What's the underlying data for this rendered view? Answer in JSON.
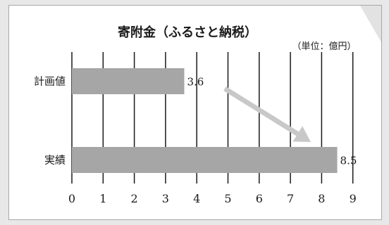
{
  "chart_data": {
    "type": "bar",
    "orientation": "horizontal",
    "title": "寄附金（ふるさと納税）",
    "unit_label": "（単位：億円）",
    "categories": [
      "計画値",
      "実績"
    ],
    "values": [
      3.6,
      8.5
    ],
    "data_labels": [
      "3.6",
      "8.5"
    ],
    "xticks": [
      "0",
      "1",
      "2",
      "3",
      "4",
      "5",
      "6",
      "7",
      "8",
      "9"
    ],
    "xlim": [
      0,
      9
    ],
    "grid": "vertical",
    "bar_color": "#a6a6a6",
    "arrow_color": "#c8c8c8",
    "annotation": "arrow from 計画値 toward 実績"
  }
}
